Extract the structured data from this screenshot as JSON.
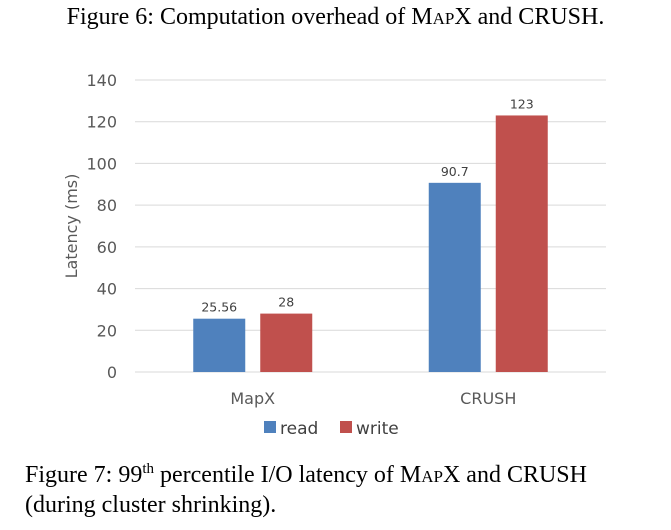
{
  "captions": {
    "top_prefix": "Figure 6: Computation overhead of ",
    "top_sc": "MapX",
    "top_suffix": " and CRUSH.",
    "bottom_prefix": "Figure 7: 99",
    "bottom_sup": "th",
    "bottom_mid": " percentile I/O latency of ",
    "bottom_sc": "MapX",
    "bottom_suffix": " and CRUSH",
    "bottom_line2": "(during cluster shrinking)."
  },
  "chart_data": {
    "type": "bar",
    "categories": [
      "MapX",
      "CRUSH"
    ],
    "series": [
      {
        "name": "read",
        "values": [
          25.56,
          90.7
        ],
        "labels": [
          "25.56",
          "90.7"
        ],
        "color": "#4f81bd"
      },
      {
        "name": "write",
        "values": [
          28,
          123
        ],
        "labels": [
          "28",
          "123"
        ],
        "color": "#c0504d"
      }
    ],
    "ylabel": "Latency (ms)",
    "ylim": [
      0,
      140
    ],
    "yticks": [
      0,
      20,
      40,
      60,
      80,
      100,
      120,
      140
    ],
    "grid": true,
    "legend": "bottom",
    "gridColor": "#d9d9d9"
  }
}
